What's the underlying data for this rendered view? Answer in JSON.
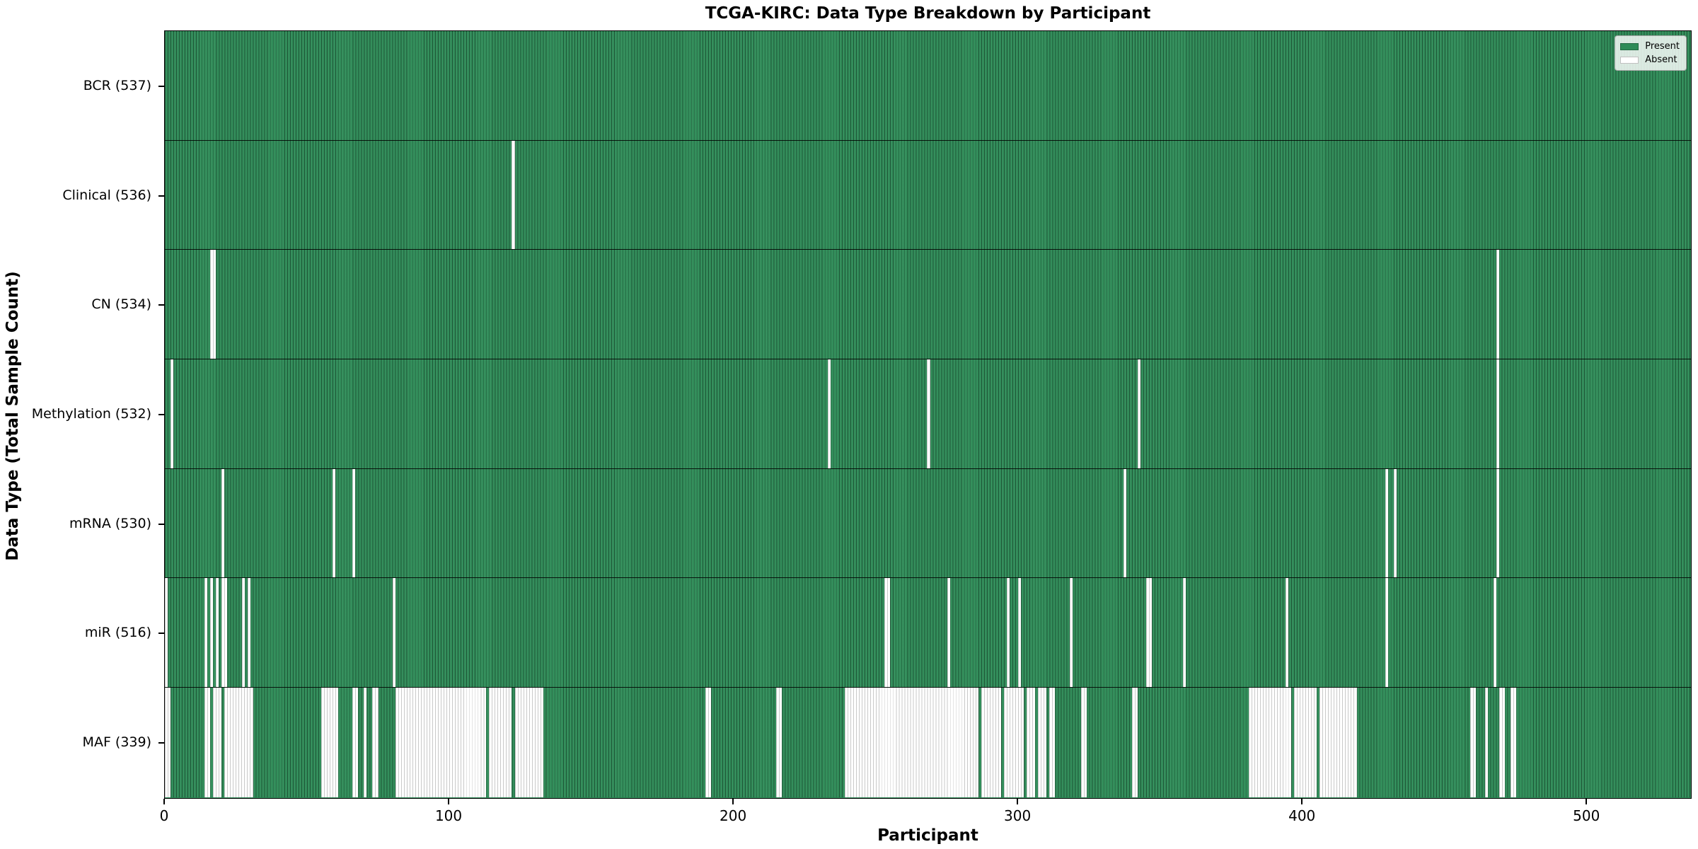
{
  "title": "TCGA-KIRC: Data Type Breakdown by Participant",
  "axes": {
    "x_label": "Participant",
    "y_label": "Data Type (Total Sample Count)"
  },
  "legend": {
    "items": [
      {
        "label": "Present",
        "color": "#2e8b57"
      },
      {
        "label": "Absent",
        "color": "#ffffff"
      }
    ],
    "position": "upper right"
  },
  "colors": {
    "present": "#2e8b57",
    "absent": "#ffffff",
    "cell_edge_on_green": "#1f5c3a",
    "cell_edge_on_white": "#c9c9c9",
    "plot_border": "#000000"
  },
  "chart_data": {
    "type": "heatmap",
    "title": "TCGA-KIRC: Data Type Breakdown by Participant",
    "xlabel": "Participant",
    "ylabel": "Data Type (Total Sample Count)",
    "x_range": [
      0,
      537
    ],
    "x_ticks": [
      0,
      100,
      200,
      300,
      400,
      500
    ],
    "legend": [
      "Present",
      "Absent"
    ],
    "grid": false,
    "rows": [
      {
        "label": "BCR",
        "count": 537,
        "tick_label": "BCR (537)",
        "absent_ranges": []
      },
      {
        "label": "Clinical",
        "count": 536,
        "tick_label": "Clinical (536)",
        "absent_ranges": [
          [
            122,
            122
          ]
        ]
      },
      {
        "label": "CN",
        "count": 534,
        "tick_label": "CN (534)",
        "absent_ranges": [
          [
            16,
            17
          ],
          [
            468,
            468
          ]
        ]
      },
      {
        "label": "Methylation",
        "count": 532,
        "tick_label": "Methylation (532)",
        "absent_ranges": [
          [
            2,
            2
          ],
          [
            233,
            233
          ],
          [
            268,
            268
          ],
          [
            342,
            342
          ],
          [
            468,
            468
          ]
        ]
      },
      {
        "label": "mRNA",
        "count": 530,
        "tick_label": "mRNA (530)",
        "absent_ranges": [
          [
            20,
            20
          ],
          [
            59,
            59
          ],
          [
            66,
            66
          ],
          [
            337,
            337
          ],
          [
            429,
            429
          ],
          [
            432,
            432
          ],
          [
            468,
            468
          ]
        ]
      },
      {
        "label": "miR",
        "count": 516,
        "tick_label": "miR (516)",
        "absent_ranges": [
          [
            0,
            0
          ],
          [
            14,
            14
          ],
          [
            16,
            16
          ],
          [
            18,
            18
          ],
          [
            20,
            21
          ],
          [
            27,
            27
          ],
          [
            29,
            29
          ],
          [
            80,
            80
          ],
          [
            253,
            254
          ],
          [
            275,
            275
          ],
          [
            296,
            296
          ],
          [
            300,
            300
          ],
          [
            318,
            318
          ],
          [
            345,
            346
          ],
          [
            358,
            358
          ],
          [
            394,
            394
          ],
          [
            429,
            429
          ],
          [
            467,
            467
          ]
        ]
      },
      {
        "label": "MAF",
        "count": 339,
        "tick_label": "MAF (339)",
        "absent_ranges": [
          [
            0,
            1
          ],
          [
            14,
            15
          ],
          [
            17,
            19
          ],
          [
            21,
            30
          ],
          [
            55,
            60
          ],
          [
            66,
            67
          ],
          [
            70,
            70
          ],
          [
            73,
            74
          ],
          [
            81,
            92
          ],
          [
            93,
            112
          ],
          [
            114,
            121
          ],
          [
            123,
            132
          ],
          [
            190,
            191
          ],
          [
            215,
            216
          ],
          [
            239,
            285
          ],
          [
            287,
            293
          ],
          [
            295,
            301
          ],
          [
            303,
            305
          ],
          [
            307,
            309
          ],
          [
            311,
            312
          ],
          [
            322,
            323
          ],
          [
            340,
            341
          ],
          [
            381,
            395
          ],
          [
            397,
            404
          ],
          [
            406,
            418
          ],
          [
            459,
            460
          ],
          [
            464,
            464
          ],
          [
            469,
            470
          ],
          [
            473,
            474
          ]
        ]
      }
    ]
  }
}
